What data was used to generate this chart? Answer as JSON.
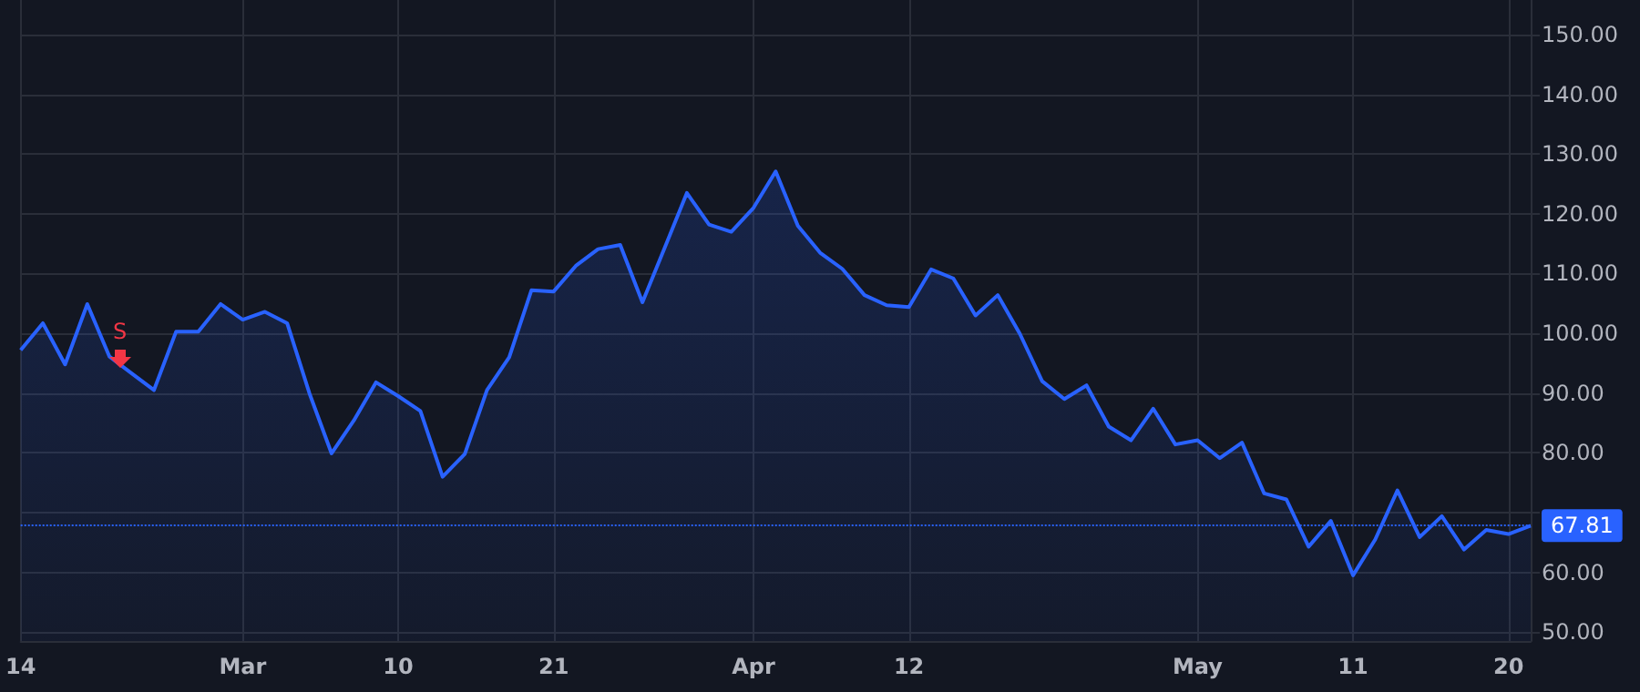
{
  "chart_data": {
    "type": "area",
    "categories": [
      "14",
      null,
      null,
      null,
      null,
      null,
      null,
      null,
      null,
      null,
      "Mar",
      null,
      null,
      null,
      null,
      null,
      null,
      "10",
      null,
      null,
      null,
      null,
      null,
      null,
      "21",
      null,
      null,
      null,
      null,
      null,
      null,
      null,
      null,
      "Apr",
      null,
      null,
      null,
      null,
      null,
      null,
      "12",
      null,
      null,
      null,
      null,
      null,
      null,
      null,
      null,
      null,
      null,
      null,
      null,
      "May",
      null,
      null,
      null,
      null,
      null,
      null,
      "11",
      null,
      null,
      null,
      null,
      null,
      null,
      "20",
      null
    ],
    "series": [
      {
        "color": "#2962ff",
        "values": [
          97.2,
          101.7,
          94.8,
          104.9,
          96.1,
          93.3,
          90.5,
          100.3,
          100.3,
          104.9,
          102.3,
          103.6,
          101.7,
          90.0,
          79.9,
          85.4,
          91.8,
          89.5,
          87.0,
          76.0,
          79.8,
          90.5,
          96.0,
          107.2,
          107.0,
          111.3,
          114.1,
          114.8,
          105.2,
          114.3,
          123.5,
          118.2,
          117.0,
          121.0,
          127.1,
          118.0,
          113.5,
          110.8,
          106.4,
          104.7,
          104.4,
          110.7,
          109.2,
          103.0,
          106.4,
          99.9,
          92.0,
          89.0,
          91.3,
          84.4,
          82.1,
          87.4,
          81.4,
          82.1,
          79.1,
          81.7,
          73.2,
          72.2,
          64.3,
          68.6,
          59.5,
          65.5,
          73.7,
          65.9,
          69.4,
          63.8,
          67.1,
          66.4,
          67.81
        ]
      }
    ],
    "ylim": [
      48.5,
      155.8
    ],
    "yticks": [
      {
        "value": 50,
        "label": "50.00"
      },
      {
        "value": 60,
        "label": "60.00"
      },
      {
        "value": 70,
        "label": null
      },
      {
        "value": 80,
        "label": "80.00"
      },
      {
        "value": 90,
        "label": "90.00"
      },
      {
        "value": 100,
        "label": "100.00"
      },
      {
        "value": 110,
        "label": "110.00"
      },
      {
        "value": 120,
        "label": "120.00"
      },
      {
        "value": 130,
        "label": "130.00"
      },
      {
        "value": 140,
        "label": "140.00"
      },
      {
        "value": 150,
        "label": "150.00"
      }
    ],
    "grid": true,
    "marker": "none",
    "ref_lines": [
      {
        "axis": "y",
        "value": 67.81,
        "label": "67.81",
        "color": "#2962ff",
        "line_style": "dotted"
      }
    ],
    "annotations": [
      "S"
    ]
  }
}
